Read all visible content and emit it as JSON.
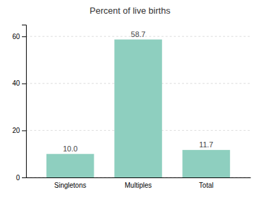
{
  "chart_data": {
    "type": "bar",
    "title": "Percent of live births",
    "categories": [
      "Singletons",
      "Multiples",
      "Total"
    ],
    "values": [
      10.0,
      58.7,
      11.7
    ],
    "value_labels": [
      "10.0",
      "58.7",
      "11.7"
    ],
    "color": "#8ecfbf",
    "ylim": [
      0,
      65
    ],
    "yticks": [
      0,
      20,
      40,
      60
    ],
    "grid": true,
    "data_labels": true
  }
}
